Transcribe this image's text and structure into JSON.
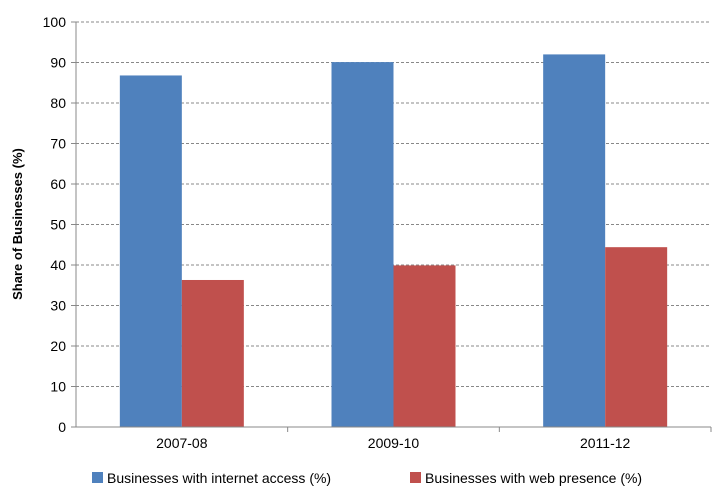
{
  "chart_data": {
    "type": "bar",
    "title": "",
    "xlabel": "",
    "ylabel": "Share of Businesses (%)",
    "categories": [
      "2007-08",
      "2009-10",
      "2011-12"
    ],
    "series": [
      {
        "name": "Businesses with internet access (%)",
        "values": [
          86.8,
          90.1,
          92.0
        ],
        "color": "#4f81bd"
      },
      {
        "name": "Businesses with web presence (%)",
        "values": [
          36.3,
          39.9,
          44.4
        ],
        "color": "#c0504d"
      }
    ],
    "ylim": [
      0,
      100
    ],
    "yticks": [
      0,
      10,
      20,
      30,
      40,
      50,
      60,
      70,
      80,
      90,
      100
    ],
    "grid": true,
    "legend_position": "bottom"
  }
}
